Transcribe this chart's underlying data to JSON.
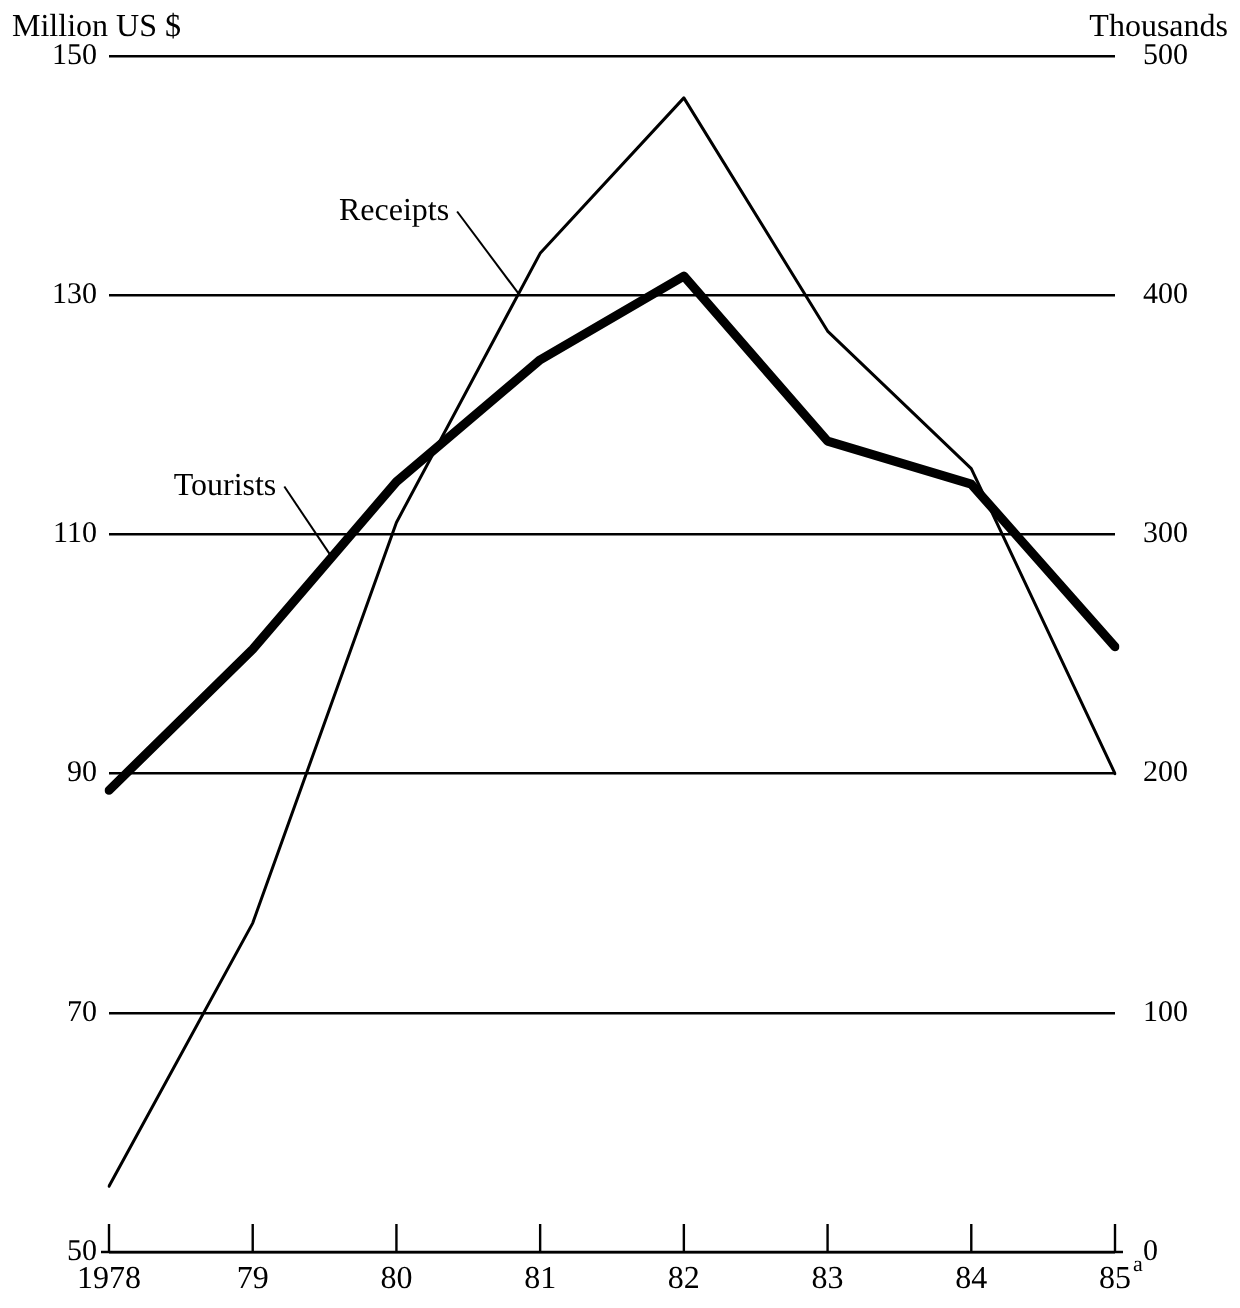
{
  "chart_data": {
    "type": "line",
    "ylabel": "Million US $",
    "y2label": "Thousands",
    "categories": [
      "1978",
      "79",
      "80",
      "81",
      "82",
      "83",
      "84",
      "85$^{a}$"
    ],
    "series": [
      {
        "name": "Receipts",
        "color": "#000000",
        "values": [
          55.5,
          77.5,
          111,
          133.5,
          146.5,
          127,
          115.5,
          90
        ]
      },
      {
        "name": "Tourists",
        "color": "#000000",
        "axis": "y2",
        "values": [
          193,
          252,
          322,
          373,
          408,
          339,
          321,
          253
        ]
      }
    ],
    "ylim": [
      50,
      150
    ],
    "yticks": [
      50,
      70,
      90,
      110,
      130,
      150
    ],
    "y2lim": [
      0,
      500
    ],
    "y2ticks": [
      0,
      100,
      200,
      300,
      400,
      500
    ],
    "grid": "y",
    "legend": false,
    "marker": "none"
  }
}
